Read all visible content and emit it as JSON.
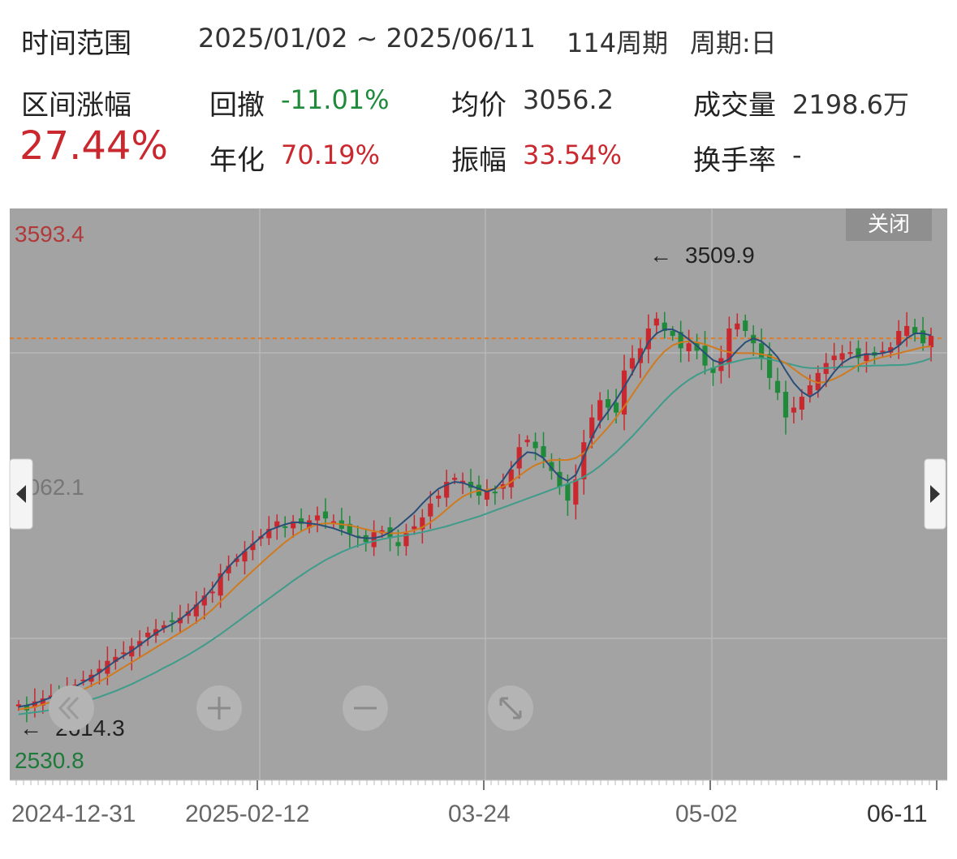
{
  "header": {
    "range_label": "时间范围",
    "range_value": "2025/01/02 ~ 2025/06/11",
    "periods": "114周期",
    "period_type": "周期:日"
  },
  "stats": {
    "change_label": "区间涨幅",
    "change_value": "27.44%",
    "drawdown_label": "回撤",
    "drawdown_value": "-11.01%",
    "annual_label": "年化",
    "annual_value": "70.19%",
    "avg_label": "均价",
    "avg_value": "3056.2",
    "amp_label": "振幅",
    "amp_value": "33.54%",
    "vol_label": "成交量",
    "vol_value": "2198.6万",
    "turnover_label": "换手率",
    "turnover_value": "-"
  },
  "controls": {
    "close_label": "关闭"
  },
  "chart_data": {
    "type": "candlestick",
    "x_ticks": [
      "2024-12-31",
      "2025-02-12",
      "03-24",
      "05-02",
      "06-11"
    ],
    "y_range": [
      2530.8,
      3593.4
    ],
    "y_labels": {
      "top": "3593.4",
      "mid": "3062.1",
      "bottom": "2530.8"
    },
    "annotations": {
      "high": "3509.9",
      "low": "2614.3"
    },
    "reference_line": 3380,
    "colors": {
      "up": "#c8282e",
      "down": "#1e8a3a",
      "ma5": "#2a4e78",
      "ma10": "#d07a20",
      "ma20": "#3f9b8a",
      "ref": "#e07b2a"
    },
    "closes": [
      2640,
      2628,
      2646,
      2652,
      2658,
      2663,
      2672,
      2680,
      2690,
      2700,
      2712,
      2728,
      2736,
      2745,
      2758,
      2768,
      2785,
      2792,
      2800,
      2808,
      2815,
      2828,
      2842,
      2860,
      2868,
      2905,
      2920,
      2935,
      2950,
      2965,
      2980,
      2995,
      3010,
      2998,
      3010,
      3005,
      3012,
      3022,
      3016,
      3010,
      2995,
      2985,
      2978,
      2968,
      2988,
      2992,
      2976,
      2960,
      2986,
      3000,
      3018,
      3046,
      3062,
      3090,
      3098,
      3092,
      3078,
      3062,
      3070,
      3068,
      3085,
      3115,
      3160,
      3175,
      3158,
      3140,
      3112,
      3080,
      3052,
      3095,
      3170,
      3220,
      3255,
      3240,
      3230,
      3315,
      3340,
      3360,
      3400,
      3420,
      3395,
      3385,
      3360,
      3370,
      3355,
      3325,
      3310,
      3340,
      3400,
      3410,
      3395,
      3370,
      3340,
      3300,
      3270,
      3220,
      3240,
      3262,
      3285,
      3310,
      3330,
      3345,
      3350,
      3352,
      3340,
      3350,
      3345,
      3355,
      3362,
      3395,
      3405,
      3390,
      3370,
      3385
    ],
    "ma5": [
      2635,
      2638,
      2642,
      2648,
      2654,
      2660,
      2668,
      2676,
      2685,
      2694,
      2704,
      2716,
      2728,
      2738,
      2748,
      2760,
      2772,
      2784,
      2794,
      2802,
      2812,
      2825,
      2840,
      2856,
      2875,
      2898,
      2918,
      2935,
      2950,
      2964,
      2978,
      2992,
      2998,
      3004,
      3008,
      3008,
      3006,
      3004,
      3000,
      2996,
      2990,
      2984,
      2978,
      2976,
      2976,
      2980,
      2988,
      3000,
      3014,
      3028,
      3046,
      3062,
      3076,
      3084,
      3090,
      3088,
      3082,
      3076,
      3070,
      3076,
      3094,
      3118,
      3136,
      3150,
      3148,
      3138,
      3118,
      3100,
      3092,
      3104,
      3140,
      3180,
      3210,
      3232,
      3256,
      3282,
      3310,
      3340,
      3372,
      3390,
      3398,
      3398,
      3390,
      3378,
      3365,
      3350,
      3336,
      3330,
      3338,
      3356,
      3372,
      3380,
      3374,
      3360,
      3342,
      3315,
      3290,
      3272,
      3262,
      3272,
      3290,
      3312,
      3330,
      3340,
      3345,
      3348,
      3348,
      3350,
      3354,
      3365,
      3380,
      3390,
      3390,
      3386
    ],
    "ma10": [
      2630,
      2632,
      2635,
      2640,
      2645,
      2650,
      2656,
      2662,
      2670,
      2678,
      2686,
      2695,
      2705,
      2715,
      2725,
      2735,
      2745,
      2755,
      2765,
      2775,
      2785,
      2795,
      2806,
      2818,
      2832,
      2848,
      2864,
      2880,
      2895,
      2910,
      2925,
      2940,
      2954,
      2968,
      2980,
      2990,
      2998,
      3004,
      3006,
      3006,
      3004,
      3002,
      2998,
      2994,
      2990,
      2988,
      2986,
      2986,
      2988,
      2992,
      2998,
      3008,
      3020,
      3034,
      3048,
      3060,
      3068,
      3072,
      3074,
      3076,
      3080,
      3090,
      3102,
      3114,
      3124,
      3130,
      3134,
      3134,
      3134,
      3138,
      3148,
      3164,
      3182,
      3200,
      3220,
      3242,
      3266,
      3290,
      3314,
      3336,
      3354,
      3366,
      3372,
      3374,
      3372,
      3368,
      3362,
      3356,
      3352,
      3350,
      3350,
      3350,
      3348,
      3344,
      3338,
      3330,
      3318,
      3306,
      3296,
      3290,
      3292,
      3298,
      3306,
      3316,
      3326,
      3332,
      3338,
      3342,
      3346,
      3350,
      3354,
      3358,
      3362,
      3364
    ],
    "ma20": [
      2620,
      2622,
      2624,
      2626,
      2629,
      2632,
      2636,
      2640,
      2645,
      2650,
      2655,
      2661,
      2667,
      2674,
      2681,
      2689,
      2697,
      2705,
      2714,
      2722,
      2731,
      2740,
      2750,
      2760,
      2771,
      2782,
      2794,
      2806,
      2818,
      2830,
      2842,
      2854,
      2866,
      2878,
      2890,
      2901,
      2912,
      2922,
      2932,
      2940,
      2948,
      2955,
      2961,
      2966,
      2970,
      2974,
      2977,
      2980,
      2982,
      2985,
      2988,
      2992,
      2996,
      3000,
      3005,
      3010,
      3015,
      3020,
      3026,
      3032,
      3038,
      3044,
      3050,
      3056,
      3062,
      3068,
      3074,
      3080,
      3086,
      3092,
      3100,
      3110,
      3122,
      3136,
      3150,
      3166,
      3182,
      3200,
      3218,
      3236,
      3254,
      3270,
      3284,
      3296,
      3306,
      3314,
      3320,
      3326,
      3330,
      3334,
      3338,
      3340,
      3340,
      3338,
      3334,
      3330,
      3326,
      3322,
      3320,
      3320,
      3320,
      3321,
      3322,
      3323,
      3324,
      3324,
      3325,
      3325,
      3326,
      3326,
      3327,
      3330,
      3334,
      3340
    ]
  }
}
